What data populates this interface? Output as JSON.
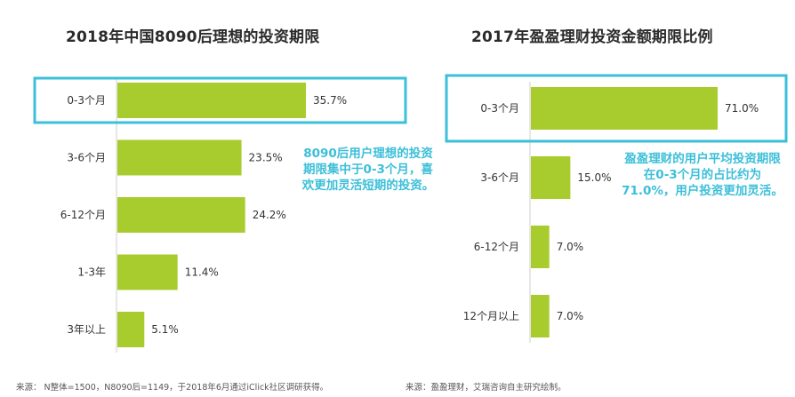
{
  "chart_data": [
    {
      "type": "bar",
      "orientation": "horizontal",
      "title": "2018年中国8090后理想的投资期限",
      "categories": [
        "0-3个月",
        "3-6个月",
        "6-12个月",
        "1-3年",
        "3年以上"
      ],
      "values": [
        35.7,
        23.5,
        24.2,
        11.4,
        5.1
      ],
      "value_labels": [
        "35.7%",
        "23.5%",
        "24.2%",
        "11.4%",
        "5.1%"
      ],
      "highlighted_category": "0-3个月",
      "annotation": "8090后用户理想的投资期限集中于0-3个月，喜欢更加灵活短期的投资。",
      "source": "来源： N整体=1500，N8090后=1149，于2018年6月通过iClick社区调研获得。",
      "bar_color": "#a8cc2e",
      "highlight_color": "#3cbfd9"
    },
    {
      "type": "bar",
      "orientation": "horizontal",
      "title": "2017年盈盈理财投资金额期限比例",
      "categories": [
        "0-3个月",
        "3-6个月",
        "6-12个月",
        "12个月以上"
      ],
      "values": [
        71.0,
        15.0,
        7.0,
        7.0
      ],
      "value_labels": [
        "71.0%",
        "15.0%",
        "7.0%",
        "7.0%"
      ],
      "highlighted_category": "0-3个月",
      "annotation": "盈盈理财的用户平均投资期限在0-3个月的占比约为71.0%，用户投资更加灵活。",
      "source": "来源：盈盈理财，艾瑞咨询自主研究绘制。",
      "bar_color": "#a8cc2e",
      "highlight_color": "#3cbfd9"
    }
  ]
}
